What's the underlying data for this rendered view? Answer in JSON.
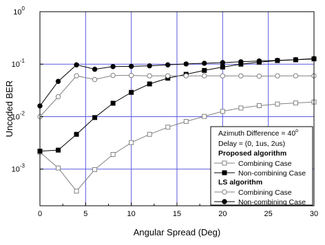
{
  "chart_data": {
    "type": "line",
    "xlabel": "Angular Spread (Deg)",
    "ylabel": "Uncoded BER",
    "xlim": [
      0,
      30
    ],
    "ylim": [
      0.0002,
      1
    ],
    "yscale": "log",
    "grid": true,
    "x_ticks": [
      "0",
      "5",
      "10",
      "15",
      "20",
      "25",
      "30"
    ],
    "y_ticks": [
      {
        "value": 0.001,
        "base": "10",
        "exp": "-3"
      },
      {
        "value": 0.01,
        "base": "10",
        "exp": "-2"
      },
      {
        "value": 0.1,
        "base": "10",
        "exp": "-1"
      },
      {
        "value": 1,
        "base": "10",
        "exp": "0"
      }
    ],
    "x": [
      0,
      2,
      4,
      6,
      8,
      10,
      12,
      14,
      16,
      18,
      20,
      22,
      24,
      26,
      28,
      30
    ],
    "legend": {
      "placement": "lower-right",
      "lines": {
        "azimuth_prefix": "Azimuth Difference = 40",
        "azimuth_sup": "o",
        "delay": "Delay = (0, 1us, 2us)",
        "group1": "Proposed algorithm",
        "group2": "LS algorithm"
      }
    },
    "series": [
      {
        "name": "Combining Case",
        "group": "proposed",
        "marker": "open-square",
        "color": "#808080",
        "values": [
          0.0021,
          0.00105,
          0.00038,
          0.00098,
          0.0019,
          0.0032,
          0.0046,
          0.0063,
          0.0081,
          0.0101,
          0.0126,
          0.0146,
          0.0162,
          0.0174,
          0.0182,
          0.019
        ]
      },
      {
        "name": "Non-combining Case",
        "group": "proposed",
        "marker": "filled-square",
        "color": "#000000",
        "values": [
          0.0022,
          0.0023,
          0.0046,
          0.0096,
          0.018,
          0.029,
          0.042,
          0.054,
          0.064,
          0.076,
          0.088,
          0.1,
          0.109,
          0.117,
          0.121,
          0.126
        ]
      },
      {
        "name": "Combining Case",
        "group": "ls",
        "marker": "open-circle",
        "color": "#808080",
        "values": [
          0.01,
          0.024,
          0.06,
          0.051,
          0.061,
          0.061,
          0.06,
          0.06,
          0.06,
          0.06,
          0.06,
          0.06,
          0.059,
          0.06,
          0.06,
          0.06
        ]
      },
      {
        "name": "Non-combining Case",
        "group": "ls",
        "marker": "filled-circle",
        "color": "#000000",
        "values": [
          0.016,
          0.047,
          0.097,
          0.08,
          0.09,
          0.091,
          0.093,
          0.097,
          0.101,
          0.104,
          0.107,
          0.111,
          0.115,
          0.118,
          0.122,
          0.128
        ]
      }
    ]
  }
}
